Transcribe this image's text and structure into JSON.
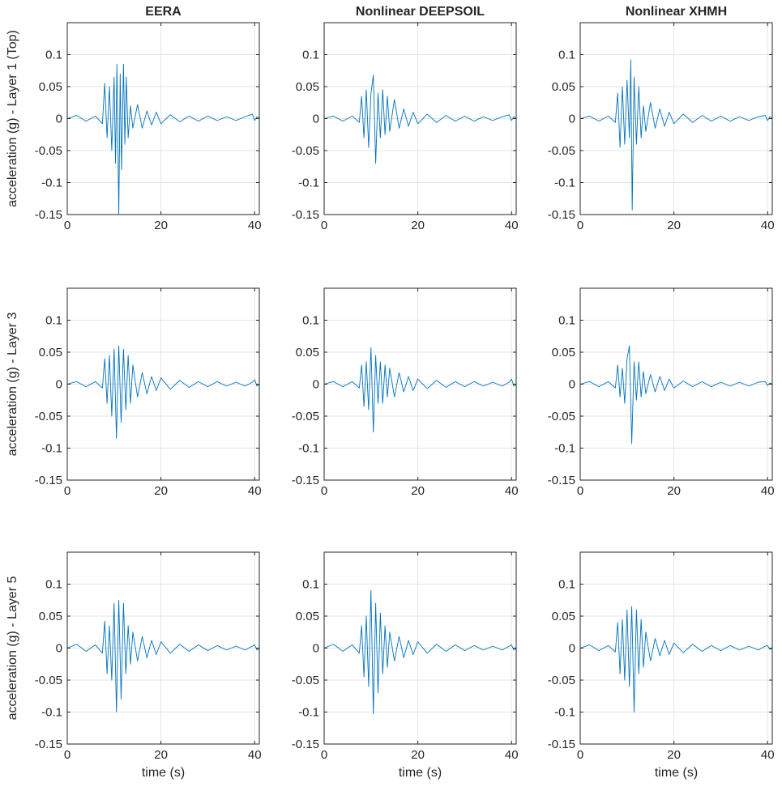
{
  "figure": {
    "column_titles": [
      "EERA",
      "Nonlinear DEEPSOIL",
      "Nonlinear XHMH"
    ],
    "row_ylabels": [
      "acceleration (g) - Layer 1 (Top)",
      "acceleration (g) - Layer 3",
      "acceleration (g) - Layer 5"
    ],
    "xlabel": "time (s)",
    "line_color": "#0072BD",
    "grid_color": "#e4e4e4"
  },
  "chart_data": [
    {
      "type": "line",
      "title": "EERA",
      "ylabel": "acceleration (g) - Layer 1 (Top)",
      "xlabel": "",
      "xlim": [
        0,
        41
      ],
      "ylim": [
        -0.15,
        0.15
      ],
      "xticks": [
        0,
        20,
        40
      ],
      "yticks": [
        -0.15,
        -0.1,
        -0.05,
        0,
        0.05,
        0.1
      ],
      "grid": true,
      "x": [
        0,
        2,
        4,
        6,
        7.5,
        8,
        8.5,
        9,
        9.5,
        10,
        10.3,
        10.6,
        11,
        11.3,
        11.6,
        12,
        12.3,
        12.6,
        13,
        13.5,
        14,
        15,
        16,
        17,
        18,
        19,
        20,
        22,
        24,
        26,
        28,
        30,
        32,
        34,
        36,
        38,
        39.5,
        40,
        40.5,
        41
      ],
      "y": [
        0,
        0.005,
        -0.004,
        0.004,
        -0.008,
        0.055,
        -0.03,
        0.05,
        -0.05,
        0.065,
        -0.07,
        0.085,
        -0.15,
        0.07,
        -0.08,
        0.085,
        -0.04,
        0.065,
        -0.03,
        0.02,
        -0.015,
        0.022,
        -0.015,
        0.012,
        -0.01,
        0.01,
        -0.008,
        0.006,
        -0.005,
        0.004,
        -0.004,
        0.004,
        -0.003,
        0.003,
        -0.003,
        0.003,
        0.007,
        -0.003,
        0.003,
        0
      ]
    },
    {
      "type": "line",
      "title": "Nonlinear DEEPSOIL",
      "ylabel": "",
      "xlabel": "",
      "xlim": [
        0,
        41
      ],
      "ylim": [
        -0.15,
        0.15
      ],
      "xticks": [
        0,
        20,
        40
      ],
      "yticks": [
        -0.15,
        -0.1,
        -0.05,
        0,
        0.05,
        0.1
      ],
      "grid": true,
      "x": [
        0,
        2,
        4,
        6,
        7.5,
        8,
        8.5,
        9,
        9.5,
        10,
        10.5,
        11,
        11.5,
        12,
        12.5,
        13,
        13.5,
        14,
        15,
        16,
        17,
        18,
        19,
        20,
        22,
        24,
        26,
        28,
        30,
        32,
        34,
        36,
        38,
        39.5,
        40,
        40.5,
        41
      ],
      "y": [
        0,
        0.004,
        -0.004,
        0.004,
        -0.006,
        0.035,
        -0.03,
        0.045,
        -0.045,
        0.04,
        0.068,
        -0.07,
        0.04,
        -0.03,
        0.045,
        -0.025,
        0.035,
        -0.02,
        0.03,
        -0.015,
        0.015,
        -0.012,
        0.01,
        -0.008,
        0.007,
        -0.006,
        0.005,
        -0.004,
        0.004,
        -0.004,
        0.003,
        -0.003,
        0.003,
        0.006,
        -0.003,
        0.003,
        0
      ]
    },
    {
      "type": "line",
      "title": "Nonlinear XHMH",
      "ylabel": "",
      "xlabel": "",
      "xlim": [
        0,
        41
      ],
      "ylim": [
        -0.15,
        0.15
      ],
      "xticks": [
        0,
        20,
        40
      ],
      "yticks": [
        -0.15,
        -0.1,
        -0.05,
        0,
        0.05,
        0.1
      ],
      "grid": true,
      "x": [
        0,
        2,
        4,
        6,
        7.5,
        8,
        8.5,
        9,
        9.5,
        10,
        10.5,
        10.8,
        11.1,
        11.5,
        12,
        12.5,
        13,
        13.5,
        14,
        15,
        16,
        17,
        18,
        19,
        20,
        22,
        24,
        26,
        28,
        30,
        32,
        34,
        36,
        38,
        39.5,
        40,
        40.5,
        41
      ],
      "y": [
        0,
        0.004,
        -0.004,
        0.004,
        -0.006,
        0.04,
        -0.045,
        0.05,
        -0.04,
        0.06,
        -0.03,
        0.092,
        -0.143,
        0.065,
        -0.04,
        0.05,
        -0.03,
        0.02,
        -0.02,
        0.025,
        -0.015,
        0.015,
        -0.012,
        0.01,
        -0.008,
        0.007,
        -0.006,
        0.005,
        -0.004,
        0.004,
        -0.004,
        0.003,
        -0.003,
        0.003,
        0.005,
        -0.003,
        0.003,
        0
      ]
    },
    {
      "type": "line",
      "title": "",
      "ylabel": "acceleration (g) - Layer 3",
      "xlabel": "",
      "xlim": [
        0,
        41
      ],
      "ylim": [
        -0.15,
        0.15
      ],
      "xticks": [
        0,
        20,
        40
      ],
      "yticks": [
        -0.15,
        -0.1,
        -0.05,
        0,
        0.05,
        0.1
      ],
      "grid": true,
      "x": [
        0,
        2,
        4,
        6,
        7.5,
        8,
        8.5,
        9,
        9.5,
        10,
        10.5,
        11,
        11.5,
        12,
        12.5,
        13,
        13.5,
        14,
        15,
        16,
        17,
        18,
        19,
        20,
        22,
        24,
        26,
        28,
        30,
        32,
        34,
        36,
        38,
        39.5,
        40,
        40.5,
        41
      ],
      "y": [
        0,
        0.004,
        -0.004,
        0.004,
        -0.006,
        0.04,
        -0.03,
        0.045,
        -0.05,
        0.055,
        -0.085,
        0.06,
        -0.06,
        0.055,
        -0.04,
        0.045,
        -0.03,
        0.03,
        -0.02,
        0.018,
        -0.015,
        0.012,
        -0.01,
        0.01,
        -0.008,
        0.006,
        -0.005,
        0.004,
        -0.004,
        0.004,
        -0.003,
        0.003,
        -0.003,
        0.003,
        0.007,
        -0.003,
        0
      ]
    },
    {
      "type": "line",
      "title": "",
      "ylabel": "",
      "xlabel": "",
      "xlim": [
        0,
        41
      ],
      "ylim": [
        -0.15,
        0.15
      ],
      "xticks": [
        0,
        20,
        40
      ],
      "yticks": [
        -0.15,
        -0.1,
        -0.05,
        0,
        0.05,
        0.1
      ],
      "grid": true,
      "x": [
        0,
        2,
        4,
        6,
        7.5,
        8,
        8.5,
        9,
        9.5,
        10,
        10.5,
        11,
        11.5,
        12,
        12.5,
        13,
        13.5,
        14,
        15,
        16,
        17,
        18,
        19,
        20,
        22,
        24,
        26,
        28,
        30,
        32,
        34,
        36,
        38,
        39.5,
        40,
        40.5,
        41
      ],
      "y": [
        0,
        0.004,
        -0.004,
        0.004,
        -0.006,
        0.03,
        -0.035,
        0.035,
        -0.04,
        0.057,
        -0.075,
        0.045,
        -0.03,
        0.035,
        -0.03,
        0.03,
        -0.02,
        0.025,
        -0.02,
        0.018,
        -0.012,
        0.012,
        -0.01,
        0.008,
        -0.007,
        0.006,
        -0.005,
        0.004,
        -0.004,
        0.004,
        -0.003,
        0.003,
        -0.003,
        0.003,
        0.008,
        -0.003,
        0
      ]
    },
    {
      "type": "line",
      "title": "",
      "ylabel": "",
      "xlabel": "",
      "xlim": [
        0,
        41
      ],
      "ylim": [
        -0.15,
        0.15
      ],
      "xticks": [
        0,
        20,
        40
      ],
      "yticks": [
        -0.15,
        -0.1,
        -0.05,
        0,
        0.05,
        0.1
      ],
      "grid": true,
      "x": [
        0,
        2,
        4,
        6,
        7.5,
        8,
        8.5,
        9,
        9.5,
        10,
        10.5,
        11,
        11.5,
        12,
        12.5,
        13,
        13.5,
        14,
        15,
        16,
        17,
        18,
        19,
        20,
        22,
        24,
        26,
        28,
        30,
        32,
        34,
        36,
        38,
        39.5,
        40,
        40.5,
        41
      ],
      "y": [
        0,
        0.004,
        -0.004,
        0.004,
        -0.006,
        0.03,
        -0.02,
        0.025,
        -0.03,
        0.04,
        0.06,
        -0.093,
        0.035,
        -0.025,
        0.035,
        -0.02,
        0.02,
        -0.015,
        0.015,
        -0.012,
        0.012,
        -0.01,
        0.008,
        -0.006,
        0.005,
        -0.004,
        0.004,
        -0.004,
        0.003,
        -0.003,
        0.003,
        -0.003,
        0.003,
        0.004,
        -0.002,
        0.002,
        0
      ]
    },
    {
      "type": "line",
      "title": "",
      "ylabel": "acceleration (g) - Layer 5",
      "xlabel": "time (s)",
      "xlim": [
        0,
        41
      ],
      "ylim": [
        -0.15,
        0.15
      ],
      "xticks": [
        0,
        20,
        40
      ],
      "yticks": [
        -0.15,
        -0.1,
        -0.05,
        0,
        0.05,
        0.1
      ],
      "grid": true,
      "x": [
        0,
        2,
        4,
        6,
        7.5,
        8,
        8.5,
        9,
        9.5,
        10,
        10.5,
        11,
        11.5,
        12,
        12.5,
        13,
        13.5,
        14,
        15,
        16,
        17,
        18,
        19,
        20,
        22,
        24,
        26,
        28,
        30,
        32,
        34,
        36,
        38,
        39.5,
        40,
        40.5,
        41
      ],
      "y": [
        0,
        0.006,
        -0.005,
        0.005,
        -0.008,
        0.042,
        -0.04,
        0.035,
        -0.05,
        0.07,
        -0.1,
        0.075,
        -0.08,
        0.07,
        -0.04,
        0.035,
        -0.025,
        0.025,
        -0.02,
        0.018,
        -0.015,
        0.012,
        -0.01,
        0.01,
        -0.008,
        0.006,
        -0.005,
        0.005,
        -0.004,
        0.004,
        -0.003,
        0.003,
        -0.003,
        0.003,
        0.005,
        -0.003,
        0
      ]
    },
    {
      "type": "line",
      "title": "",
      "ylabel": "",
      "xlabel": "time (s)",
      "xlim": [
        0,
        41
      ],
      "ylim": [
        -0.15,
        0.15
      ],
      "xticks": [
        0,
        20,
        40
      ],
      "yticks": [
        -0.15,
        -0.1,
        -0.05,
        0,
        0.05,
        0.1
      ],
      "grid": true,
      "x": [
        0,
        2,
        4,
        6,
        7.5,
        8,
        8.5,
        9,
        9.5,
        10,
        10.5,
        11,
        11.5,
        12,
        12.5,
        13,
        13.5,
        14,
        15,
        16,
        17,
        18,
        19,
        20,
        22,
        24,
        26,
        28,
        30,
        32,
        34,
        36,
        38,
        39.5,
        40,
        40.5,
        41
      ],
      "y": [
        0,
        0.006,
        -0.005,
        0.005,
        -0.008,
        0.035,
        -0.045,
        0.05,
        -0.06,
        0.09,
        -0.103,
        0.07,
        -0.07,
        0.055,
        -0.04,
        0.035,
        -0.03,
        0.025,
        -0.02,
        0.018,
        -0.015,
        0.012,
        -0.01,
        0.01,
        -0.008,
        0.006,
        -0.005,
        0.005,
        -0.004,
        0.004,
        -0.003,
        0.003,
        -0.003,
        0.003,
        0.005,
        -0.003,
        0
      ]
    },
    {
      "type": "line",
      "title": "",
      "ylabel": "",
      "xlabel": "time (s)",
      "xlim": [
        0,
        41
      ],
      "ylim": [
        -0.15,
        0.15
      ],
      "xticks": [
        0,
        20,
        40
      ],
      "yticks": [
        -0.15,
        -0.1,
        -0.05,
        0,
        0.05,
        0.1
      ],
      "grid": true,
      "x": [
        0,
        2,
        4,
        6,
        7.5,
        8,
        8.5,
        9,
        9.5,
        10,
        10.5,
        11,
        11.5,
        12,
        12.5,
        13,
        13.5,
        14,
        15,
        16,
        17,
        18,
        19,
        20,
        22,
        24,
        26,
        28,
        30,
        32,
        34,
        36,
        38,
        39.5,
        40,
        40.5,
        41
      ],
      "y": [
        0,
        0.005,
        -0.004,
        0.004,
        -0.006,
        0.04,
        -0.04,
        0.045,
        -0.05,
        0.06,
        -0.06,
        0.065,
        -0.1,
        0.06,
        -0.04,
        0.045,
        -0.03,
        0.025,
        -0.02,
        0.015,
        -0.012,
        0.012,
        -0.01,
        0.008,
        -0.007,
        0.006,
        -0.005,
        0.004,
        -0.004,
        0.004,
        -0.003,
        0.003,
        -0.003,
        0.003,
        0.004,
        -0.002,
        0
      ]
    }
  ]
}
